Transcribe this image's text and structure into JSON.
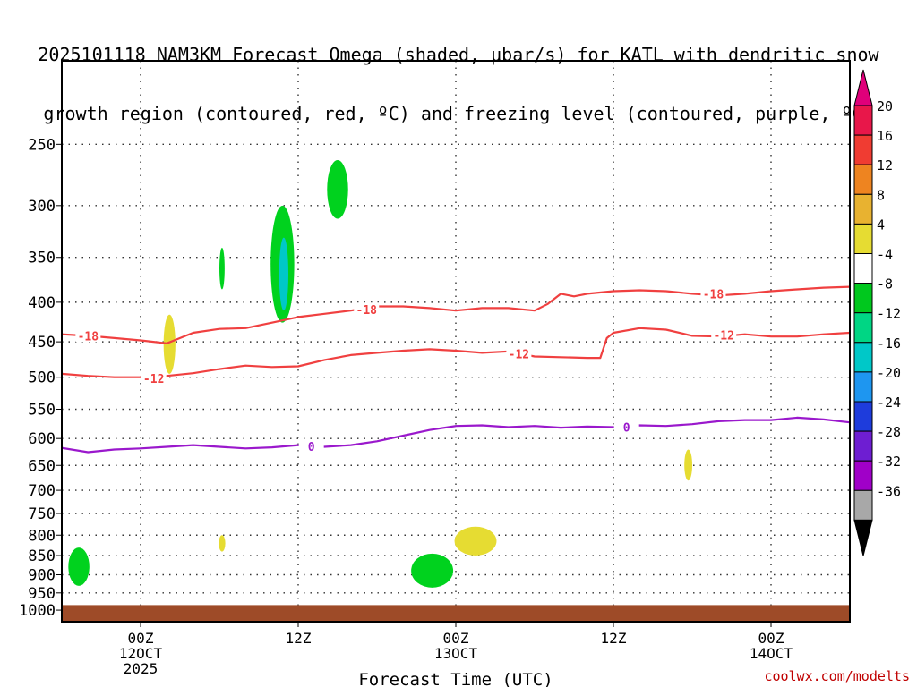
{
  "title": {
    "line1": "2025101118 NAM3KM Forecast Omega (shaded, μbar/s) for KATL with dendritic snow",
    "line2": "growth region (contoured, red, ºC) and freezing level (contoured, purple, ºC)"
  },
  "watermark": "coolwx.com/modelts",
  "chart_data": {
    "type": "heatmap",
    "xlabel": "Forecast Time (UTC)",
    "x_ticks": [
      {
        "hour": 6,
        "lines": [
          "00Z",
          "12OCT",
          "2025"
        ]
      },
      {
        "hour": 18,
        "lines": [
          "12Z"
        ]
      },
      {
        "hour": 30,
        "lines": [
          "00Z",
          "13OCT"
        ]
      },
      {
        "hour": 42,
        "lines": [
          "12Z"
        ]
      },
      {
        "hour": 54,
        "lines": [
          "00Z",
          "14OCT"
        ]
      }
    ],
    "xlim": [
      0,
      60
    ],
    "ylabel": "",
    "y_axis": "pressure (hPa), log scale, inverted",
    "y_ticks": [
      250,
      300,
      350,
      400,
      450,
      500,
      550,
      600,
      650,
      700,
      750,
      800,
      850,
      900,
      950,
      1000
    ],
    "ylim": [
      1035,
      195
    ],
    "grid": true,
    "colorbar": {
      "unit": "μbar/s",
      "labels": [
        20,
        16,
        12,
        8,
        4,
        -4,
        -8,
        -12,
        -16,
        -20,
        -24,
        -28,
        -32,
        -36
      ],
      "colors": [
        "#e8174a",
        "#f03c32",
        "#ee8420",
        "#e8b230",
        "#e6dc32",
        "#ffffff",
        "#00c81e",
        "#00d684",
        "#00c8c8",
        "#1e96f0",
        "#1e3cdc",
        "#6e1ed2",
        "#a000c8",
        "#a8a8a8"
      ],
      "over_color": "#e0007a",
      "under_color": "#000000"
    },
    "omega_areas": [
      {
        "color": "#00d21e",
        "hour": 1.3,
        "p": 880,
        "dh": 0.8,
        "dp_low": 830,
        "dp_high": 930
      },
      {
        "color": "#e6dc32",
        "hour": 8.2,
        "p": 455,
        "dh": 0.45,
        "dp_low": 415,
        "dp_high": 495
      },
      {
        "color": "#00d21e",
        "hour": 12.2,
        "p": 360,
        "dh": 0.2,
        "dp_low": 340,
        "dp_high": 385
      },
      {
        "color": "#00d21e",
        "hour": 16.8,
        "p": 355,
        "dh": 0.9,
        "dp_low": 300,
        "dp_high": 425
      },
      {
        "color": "#00c8c8",
        "hour": 16.9,
        "p": 365,
        "dh": 0.35,
        "dp_low": 330,
        "dp_high": 410
      },
      {
        "color": "#00d21e",
        "hour": 21.0,
        "p": 285,
        "dh": 0.8,
        "dp_low": 262,
        "dp_high": 312
      },
      {
        "color": "#e6dc32",
        "hour": 12.2,
        "p": 818,
        "dh": 0.25,
        "dp_low": 800,
        "dp_high": 840
      },
      {
        "color": "#00d21e",
        "hour": 28.2,
        "p": 885,
        "dh": 1.6,
        "dp_low": 845,
        "dp_high": 935
      },
      {
        "color": "#e6dc32",
        "hour": 31.5,
        "p": 808,
        "dh": 1.6,
        "dp_low": 780,
        "dp_high": 850
      },
      {
        "color": "#e6dc32",
        "hour": 47.7,
        "p": 650,
        "dh": 0.3,
        "dp_low": 620,
        "dp_high": 680
      }
    ],
    "series": [
      {
        "name": "-18",
        "color": "#f04040",
        "x": [
          0,
          2,
          4,
          6,
          8,
          10,
          12,
          14,
          16,
          18,
          20,
          22,
          24,
          26,
          28,
          30,
          32,
          34,
          36,
          37,
          38,
          39,
          40,
          42,
          44,
          46,
          48,
          50,
          52,
          54,
          56,
          58,
          60
        ],
        "p": [
          440,
          442,
          445,
          448,
          452,
          438,
          433,
          432,
          425,
          418,
          414,
          410,
          405,
          405,
          407,
          410,
          407,
          407,
          410,
          402,
          390,
          393,
          390,
          387,
          386,
          387,
          390,
          392,
          390,
          387,
          385,
          383,
          382
        ]
      },
      {
        "name": "-12",
        "color": "#f04040",
        "x": [
          0,
          2,
          4,
          6,
          8,
          10,
          12,
          14,
          16,
          18,
          20,
          22,
          24,
          26,
          28,
          30,
          32,
          34,
          36,
          38,
          40,
          41,
          41.5,
          42,
          44,
          46,
          48,
          50,
          52,
          54,
          56,
          58,
          60
        ],
        "p": [
          495,
          498,
          500,
          500,
          498,
          494,
          488,
          483,
          485,
          484,
          475,
          468,
          465,
          462,
          460,
          462,
          465,
          463,
          470,
          471,
          472,
          472,
          445,
          438,
          432,
          434,
          442,
          443,
          440,
          443,
          443,
          440,
          438
        ]
      },
      {
        "name": "0",
        "color": "#9a18cc",
        "x": [
          0,
          2,
          4,
          6,
          8,
          10,
          12,
          14,
          16,
          18,
          20,
          22,
          24,
          26,
          28,
          30,
          32,
          34,
          36,
          38,
          40,
          42,
          44,
          46,
          48,
          50,
          52,
          54,
          56,
          58,
          60
        ],
        "p": [
          617,
          625,
          620,
          618,
          615,
          612,
          615,
          618,
          616,
          612,
          615,
          612,
          605,
          595,
          585,
          578,
          577,
          580,
          578,
          581,
          579,
          580,
          577,
          578,
          575,
          570,
          568,
          568,
          564,
          567,
          572
        ]
      }
    ],
    "contour_labels": [
      {
        "text": "-18",
        "hour": 2.0,
        "p": 442,
        "color": "#f04040"
      },
      {
        "text": "-18",
        "hour": 23.2,
        "p": 409,
        "color": "#f04040"
      },
      {
        "text": "-18",
        "hour": 49.6,
        "p": 390,
        "color": "#f04040"
      },
      {
        "text": "-12",
        "hour": 7.0,
        "p": 502,
        "color": "#f04040"
      },
      {
        "text": "-12",
        "hour": 34.8,
        "p": 466,
        "color": "#f04040"
      },
      {
        "text": "-12",
        "hour": 50.4,
        "p": 441,
        "color": "#f04040"
      },
      {
        "text": "0",
        "hour": 19.0,
        "p": 614,
        "color": "#9a18cc"
      },
      {
        "text": "0",
        "hour": 43.0,
        "p": 580,
        "color": "#9a18cc"
      }
    ],
    "terrain": {
      "color": "#9e4b28",
      "p": 985
    }
  }
}
